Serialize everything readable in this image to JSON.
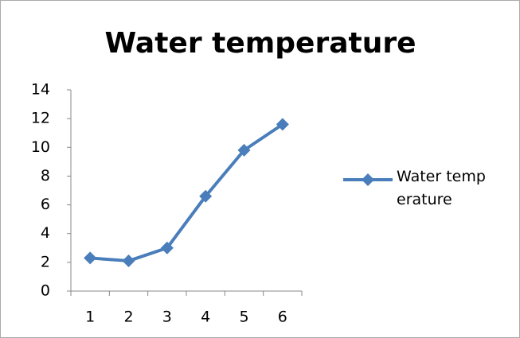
{
  "chart_data": {
    "type": "line",
    "title": "Water temperature",
    "categories": [
      "1",
      "2",
      "3",
      "4",
      "5",
      "6"
    ],
    "series": [
      {
        "name": "Water temperature",
        "color": "#4a7ebb",
        "values": [
          2.3,
          2.1,
          3.0,
          6.6,
          9.8,
          11.6
        ]
      }
    ],
    "ylim": [
      0,
      14
    ],
    "yticks": [
      0,
      2,
      4,
      6,
      8,
      10,
      12,
      14
    ],
    "grid": false,
    "legend": "right"
  }
}
